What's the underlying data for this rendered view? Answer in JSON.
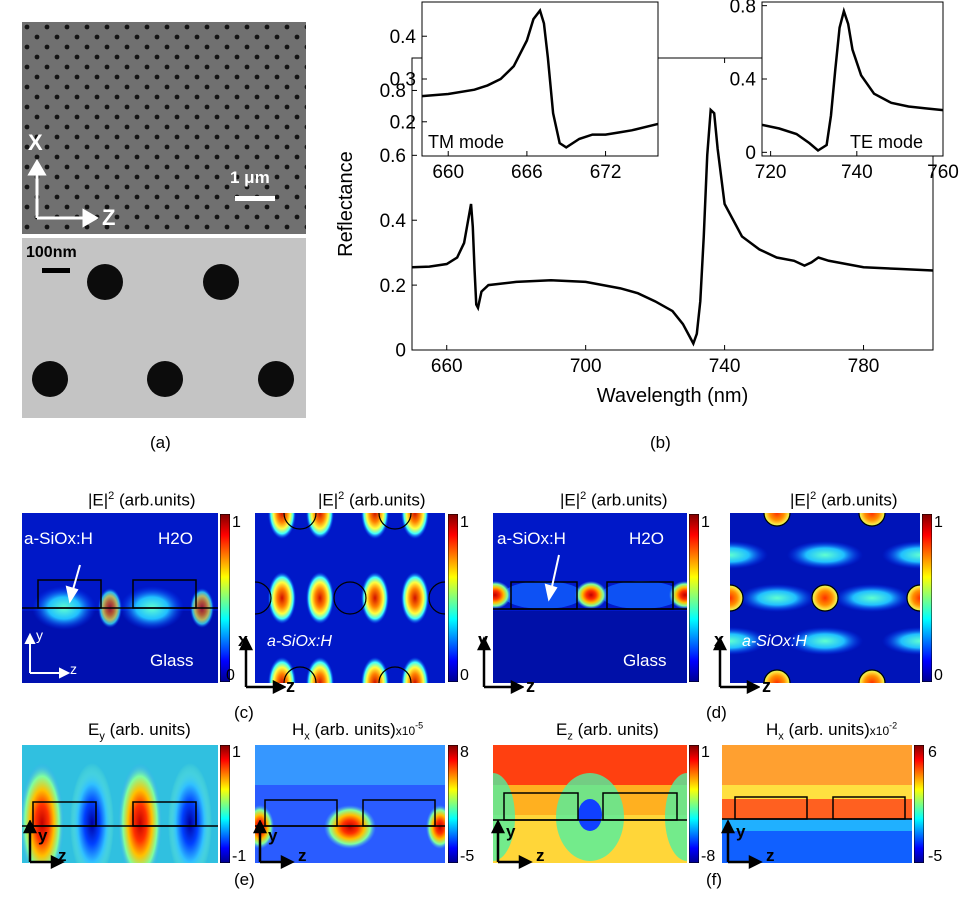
{
  "panel_labels": {
    "a": "(a)",
    "b": "(b)",
    "c": "(c)",
    "d": "(d)",
    "e": "(e)",
    "f": "(f)"
  },
  "sem": {
    "scale_top": "1 μm",
    "scale_bottom": "100nm",
    "axis_x": "X",
    "axis_z": "Z"
  },
  "chart_data": [
    {
      "type": "line",
      "xlabel": "Wavelength (nm)",
      "ylabel": "Reflectance",
      "xlim": [
        650,
        800
      ],
      "ylim": [
        0,
        0.9
      ],
      "x_ticks": [
        "660",
        "700",
        "740",
        "780"
      ],
      "y_ticks": [
        "0",
        "0.2",
        "0.4",
        "0.6",
        "0.8"
      ],
      "x": [
        650,
        655,
        660,
        663,
        665,
        666,
        667,
        667.5,
        668,
        668.5,
        669,
        670,
        672,
        676,
        680,
        690,
        700,
        710,
        715,
        720,
        725,
        728,
        730,
        731,
        732,
        733,
        734,
        735,
        736,
        737,
        738,
        740,
        745,
        750,
        755,
        760,
        763,
        765,
        767,
        770,
        775,
        780,
        790,
        800
      ],
      "y": [
        0.255,
        0.257,
        0.265,
        0.285,
        0.33,
        0.39,
        0.45,
        0.38,
        0.25,
        0.14,
        0.13,
        0.18,
        0.2,
        0.205,
        0.21,
        0.215,
        0.21,
        0.19,
        0.175,
        0.15,
        0.12,
        0.08,
        0.04,
        0.02,
        0.05,
        0.15,
        0.35,
        0.6,
        0.74,
        0.73,
        0.62,
        0.45,
        0.35,
        0.31,
        0.285,
        0.275,
        0.26,
        0.27,
        0.285,
        0.275,
        0.265,
        0.255,
        0.25,
        0.245
      ]
    },
    {
      "type": "line",
      "label": "TM mode",
      "xlim": [
        658,
        676
      ],
      "ylim": [
        0.12,
        0.48
      ],
      "x_ticks": [
        "660",
        "666",
        "672"
      ],
      "y_ticks": [
        "0.2",
        "0.3",
        "0.4"
      ],
      "x": [
        658,
        660,
        662,
        663,
        664,
        665,
        666,
        666.5,
        667,
        667.3,
        667.6,
        668,
        668.5,
        669,
        670,
        671,
        672,
        673,
        674,
        676
      ],
      "y": [
        0.26,
        0.265,
        0.275,
        0.285,
        0.3,
        0.33,
        0.39,
        0.44,
        0.46,
        0.43,
        0.35,
        0.22,
        0.15,
        0.14,
        0.16,
        0.17,
        0.17,
        0.175,
        0.18,
        0.195
      ]
    },
    {
      "type": "line",
      "label": "TE mode",
      "xlim": [
        718,
        760
      ],
      "ylim": [
        -0.02,
        0.82
      ],
      "x_ticks": [
        "720",
        "740",
        "760"
      ],
      "y_ticks": [
        "0",
        "0.4",
        "0.8"
      ],
      "x": [
        718,
        722,
        726,
        729,
        731,
        733,
        734,
        735,
        736,
        737,
        738,
        739,
        741,
        744,
        748,
        752,
        756,
        760
      ],
      "y": [
        0.15,
        0.13,
        0.1,
        0.05,
        0.01,
        0.04,
        0.2,
        0.45,
        0.68,
        0.77,
        0.7,
        0.56,
        0.42,
        0.32,
        0.27,
        0.25,
        0.24,
        0.23
      ]
    }
  ],
  "field_maps": {
    "c1": {
      "title": "|E|",
      "sup": "2",
      "title_suffix": " (arb.units)",
      "material": "a-SiOx:H",
      "medium": "H2O",
      "substrate": "Glass",
      "cmax": "1",
      "cmin": "0",
      "ax1": "y",
      "ax2": "z"
    },
    "c2": {
      "title": "|E|",
      "sup": "2",
      "title_suffix": " (arb.units)",
      "material": "a-SiOx:H",
      "cmax": "1",
      "cmin": "0",
      "ax1": "x",
      "ax2": "z"
    },
    "d1": {
      "title": "|E|",
      "sup": "2",
      "title_suffix": " (arb.units)",
      "material": "a-SiOx:H",
      "medium": "H2O",
      "substrate": "Glass",
      "cmax": "1",
      "cmin": "0",
      "ax1": "y",
      "ax2": "z"
    },
    "d2": {
      "title": "|E|",
      "sup": "2",
      "title_suffix": " (arb.units)",
      "material": "a-SiOx:H",
      "cmax": "1",
      "cmin": "0",
      "ax1": "x",
      "ax2": "z"
    },
    "e1": {
      "title": "E",
      "sub": "y",
      "title_suffix": " (arb. units)",
      "cmax": "1",
      "cmin": "-1",
      "ax1": "y",
      "ax2": "z"
    },
    "e2": {
      "title": "H",
      "sub": "x",
      "title_suffix": " (arb. units)",
      "exp": "x10",
      "exp_sup": "-5",
      "cmax": "8",
      "cmin": "-5",
      "ax1": "y",
      "ax2": "z"
    },
    "f1": {
      "title": "E",
      "sub": "z",
      "title_suffix": " (arb. units)",
      "cmax": "1",
      "cmin": "-8",
      "ax1": "y",
      "ax2": "z"
    },
    "f2": {
      "title": "H",
      "sub": "x",
      "title_suffix": " (arb. units)",
      "exp": "x10",
      "exp_sup": "-2",
      "cmax": "6",
      "cmin": "-5",
      "ax1": "y",
      "ax2": "z"
    }
  },
  "colors": {
    "jet_low": "#00008f",
    "jet_mid": "#00ffff",
    "jet_high": "#800000",
    "line": "#000000"
  }
}
